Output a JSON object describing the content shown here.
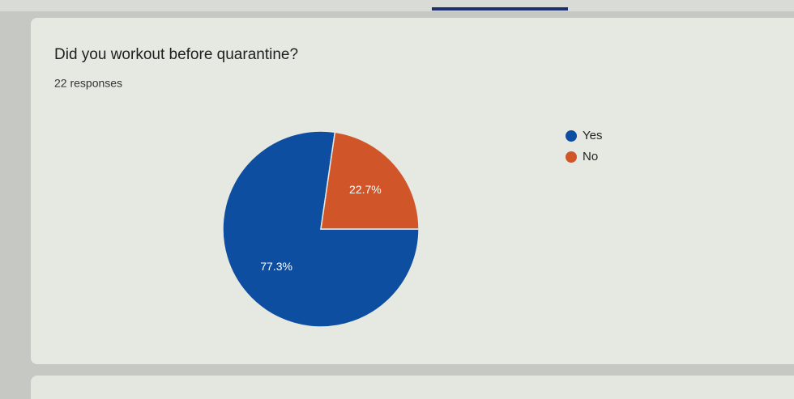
{
  "chart_data": {
    "type": "pie",
    "title": "Did you workout before quarantine?",
    "subtitle": "22 responses",
    "categories": [
      "Yes",
      "No"
    ],
    "values": [
      77.3,
      22.7
    ],
    "value_labels": [
      "77.3%",
      "22.7%"
    ],
    "colors": [
      "#0d4ea0",
      "#d0562a"
    ],
    "legend": "right"
  }
}
